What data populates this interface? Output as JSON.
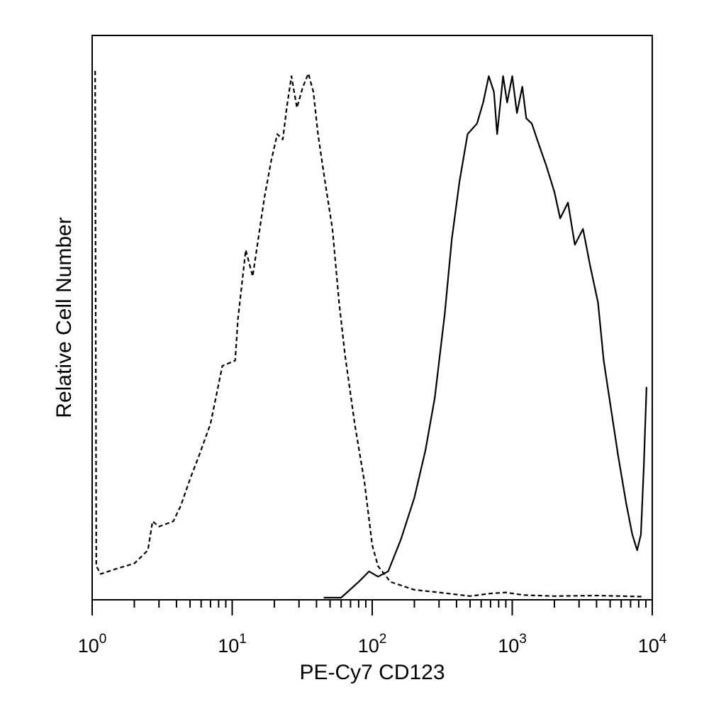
{
  "chart_data": {
    "type": "line",
    "title": "",
    "xlabel": "PE-Cy7 CD123",
    "ylabel": "Relative Cell Number",
    "x_scale": "log",
    "xlim": [
      1,
      10000
    ],
    "ylim": [
      0,
      100
    ],
    "grid": false,
    "legend": "none",
    "x_ticks": [
      {
        "base": "10",
        "exp": "0"
      },
      {
        "base": "10",
        "exp": "1"
      },
      {
        "base": "10",
        "exp": "2"
      },
      {
        "base": "10",
        "exp": "3"
      },
      {
        "base": "10",
        "exp": "4"
      }
    ],
    "series": [
      {
        "style": "dashed",
        "color": "#000000",
        "points": [
          [
            1.05,
            100
          ],
          [
            1.07,
            6
          ],
          [
            1.15,
            4.5
          ],
          [
            1.5,
            5.5
          ],
          [
            2.0,
            6.5
          ],
          [
            2.5,
            9
          ],
          [
            2.7,
            14.5
          ],
          [
            3.0,
            13.5
          ],
          [
            3.8,
            14.5
          ],
          [
            4.3,
            17.5
          ],
          [
            5.0,
            22.5
          ],
          [
            5.8,
            27
          ],
          [
            7.0,
            33
          ],
          [
            8.5,
            44
          ],
          [
            10.5,
            45
          ],
          [
            11.0,
            53
          ],
          [
            12.5,
            66
          ],
          [
            14.0,
            61
          ],
          [
            17.0,
            76
          ],
          [
            19.0,
            83
          ],
          [
            21.0,
            88
          ],
          [
            23.0,
            87
          ],
          [
            24.5,
            93
          ],
          [
            26.5,
            99
          ],
          [
            29.0,
            93
          ],
          [
            32.0,
            97
          ],
          [
            35.0,
            99.5
          ],
          [
            38.0,
            96
          ],
          [
            41.0,
            88
          ],
          [
            46.0,
            79
          ],
          [
            52.0,
            70
          ],
          [
            58.0,
            56
          ],
          [
            64.0,
            46
          ],
          [
            75.0,
            33
          ],
          [
            88.0,
            22
          ],
          [
            100.0,
            10
          ],
          [
            110.0,
            6
          ],
          [
            135.0,
            3
          ],
          [
            200.0,
            1.5
          ],
          [
            300.0,
            1
          ],
          [
            500.0,
            0.3
          ],
          [
            700.0,
            0.8
          ],
          [
            900.0,
            1
          ],
          [
            1200.0,
            0.5
          ],
          [
            2000.0,
            0.3
          ],
          [
            4000.0,
            0.4
          ],
          [
            8500.0,
            0.2
          ]
        ]
      },
      {
        "style": "solid",
        "color": "#000000",
        "points": [
          [
            45.0,
            0
          ],
          [
            60.0,
            0
          ],
          [
            80.0,
            3
          ],
          [
            95.0,
            5
          ],
          [
            110.0,
            4
          ],
          [
            130.0,
            5
          ],
          [
            160.0,
            11
          ],
          [
            200.0,
            19
          ],
          [
            240.0,
            28
          ],
          [
            280.0,
            38
          ],
          [
            330.0,
            54
          ],
          [
            370.0,
            68
          ],
          [
            420.0,
            79
          ],
          [
            480.0,
            88
          ],
          [
            560.0,
            90
          ],
          [
            620.0,
            94
          ],
          [
            680.0,
            99
          ],
          [
            740.0,
            96
          ],
          [
            780.0,
            88
          ],
          [
            860.0,
            99
          ],
          [
            920.0,
            94
          ],
          [
            1000.0,
            99
          ],
          [
            1080.0,
            92
          ],
          [
            1180.0,
            97
          ],
          [
            1260.0,
            91
          ],
          [
            1380.0,
            90
          ],
          [
            1550.0,
            86
          ],
          [
            1750.0,
            82
          ],
          [
            2000.0,
            77
          ],
          [
            2200.0,
            72
          ],
          [
            2500.0,
            75
          ],
          [
            2800.0,
            67
          ],
          [
            3200.0,
            70
          ],
          [
            3600.0,
            63
          ],
          [
            4100.0,
            56
          ],
          [
            4500.0,
            45
          ],
          [
            5000.0,
            37
          ],
          [
            5700.0,
            27
          ],
          [
            6500.0,
            18
          ],
          [
            7200.0,
            12
          ],
          [
            7800.0,
            9
          ],
          [
            8300.0,
            12
          ],
          [
            8700.0,
            25
          ],
          [
            9100.0,
            40
          ]
        ]
      }
    ]
  }
}
